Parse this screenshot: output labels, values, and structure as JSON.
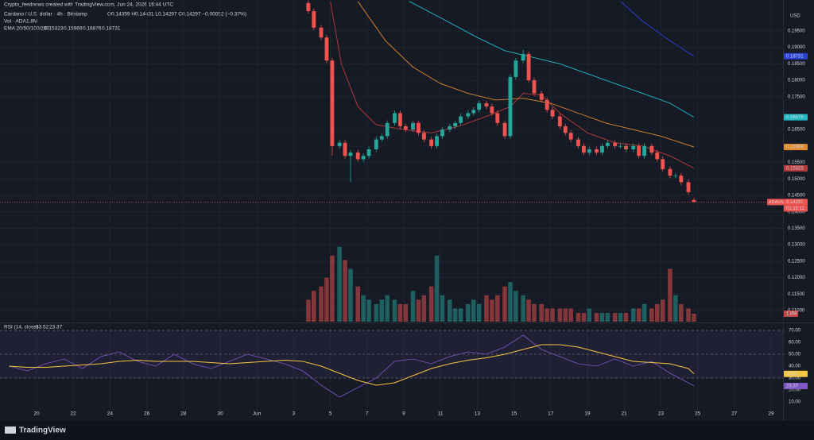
{
  "header": {
    "credit": "Crypto_feednews created with TradingView.com, Jun 24, 2026 16:44 UTC",
    "symbol": "Cardano / U.S. dollar · 4h · Bitstamp",
    "ohlc": "O0.14359  H0.14431  L0.14297  C0.14297  −0.00052 (−0.37%)"
  },
  "chart_data": {
    "type": "candlestick",
    "currency": "USD",
    "symbol": "ADAUSD",
    "countdown": "01:15:11",
    "up_color": "#26a69a",
    "down_color": "#ef5350",
    "grid": true,
    "x": [
      14.8,
      15.1,
      15.5,
      15.8,
      16.1,
      16.5,
      16.8,
      17.1,
      17.5,
      17.8,
      18.1,
      18.5,
      18.8,
      19.1,
      19.5,
      19.8,
      20.1,
      20.5,
      20.8,
      21.1,
      21.5,
      21.8,
      22.1,
      22.5,
      22.8,
      23.1,
      23.5,
      23.8,
      24.1,
      24.5,
      24.8,
      25.1,
      25.5,
      25.8,
      26.1,
      26.5,
      26.8,
      27.1,
      27.5,
      27.8,
      28.1,
      28.5,
      28.8,
      29.1,
      29.5,
      29.8,
      30.1,
      30.5,
      30.8,
      31.1,
      31.5,
      31.8,
      32.1,
      32.5,
      32.8,
      33.1,
      33.5,
      33.8,
      34.1,
      34.5,
      34.8,
      35.1,
      35.5,
      35.8
    ],
    "open": [
      0.2035,
      0.201,
      0.196,
      0.193,
      0.186,
      0.16,
      0.161,
      0.157,
      0.158,
      0.156,
      0.157,
      0.159,
      0.162,
      0.163,
      0.167,
      0.17,
      0.166,
      0.165,
      0.167,
      0.164,
      0.162,
      0.16,
      0.163,
      0.165,
      0.166,
      0.167,
      0.169,
      0.17,
      0.171,
      0.173,
      0.172,
      0.17,
      0.167,
      0.163,
      0.181,
      0.186,
      0.188,
      0.18,
      0.176,
      0.174,
      0.171,
      0.169,
      0.166,
      0.164,
      0.162,
      0.16,
      0.158,
      0.159,
      0.158,
      0.16,
      0.161,
      0.16,
      0.16,
      0.159,
      0.16,
      0.157,
      0.16,
      0.158,
      0.156,
      0.153,
      0.151,
      0.151,
      0.149,
      0.14359
    ],
    "high": [
      0.2043,
      0.2018,
      0.1968,
      0.1938,
      0.1868,
      0.1618,
      0.1618,
      0.1588,
      0.1588,
      0.1578,
      0.1598,
      0.1628,
      0.1638,
      0.1678,
      0.1708,
      0.1708,
      0.1668,
      0.1678,
      0.1678,
      0.1648,
      0.1628,
      0.1638,
      0.1658,
      0.1668,
      0.1678,
      0.1698,
      0.1708,
      0.1718,
      0.1738,
      0.1738,
      0.1728,
      0.1708,
      0.1678,
      0.1818,
      0.1868,
      0.1893,
      0.1888,
      0.1808,
      0.1768,
      0.1748,
      0.1718,
      0.1698,
      0.1668,
      0.1648,
      0.1628,
      0.1608,
      0.1598,
      0.1598,
      0.1608,
      0.1618,
      0.1618,
      0.1608,
      0.1608,
      0.1608,
      0.1608,
      0.1608,
      0.1608,
      0.1588,
      0.1568,
      0.1538,
      0.1518,
      0.1518,
      0.1498,
      0.14431
    ],
    "low": [
      0.2002,
      0.1952,
      0.1922,
      0.1852,
      0.157,
      0.1592,
      0.1562,
      0.149,
      0.1552,
      0.1552,
      0.1562,
      0.1582,
      0.1612,
      0.1622,
      0.1662,
      0.1652,
      0.1642,
      0.1642,
      0.1632,
      0.1612,
      0.1592,
      0.1592,
      0.1622,
      0.1642,
      0.1652,
      0.1662,
      0.1682,
      0.1692,
      0.1702,
      0.1712,
      0.1692,
      0.1662,
      0.1622,
      0.1622,
      0.1802,
      0.1852,
      0.1792,
      0.1752,
      0.1732,
      0.1702,
      0.1682,
      0.1652,
      0.1632,
      0.1612,
      0.1592,
      0.1572,
      0.1572,
      0.1572,
      0.1572,
      0.1592,
      0.1592,
      0.1592,
      0.1582,
      0.1582,
      0.1562,
      0.1562,
      0.1572,
      0.1552,
      0.1522,
      0.1502,
      0.1502,
      0.1482,
      0.1452,
      0.14297
    ],
    "close": [
      0.201,
      0.196,
      0.193,
      0.186,
      0.16,
      0.161,
      0.157,
      0.158,
      0.156,
      0.157,
      0.159,
      0.162,
      0.163,
      0.167,
      0.17,
      0.166,
      0.165,
      0.167,
      0.164,
      0.162,
      0.16,
      0.163,
      0.165,
      0.166,
      0.167,
      0.169,
      0.17,
      0.171,
      0.173,
      0.172,
      0.17,
      0.167,
      0.163,
      0.181,
      0.186,
      0.188,
      0.18,
      0.176,
      0.174,
      0.171,
      0.169,
      0.166,
      0.164,
      0.162,
      0.16,
      0.158,
      0.159,
      0.158,
      0.16,
      0.161,
      0.16,
      0.16,
      0.159,
      0.16,
      0.157,
      0.16,
      0.158,
      0.156,
      0.153,
      0.151,
      0.151,
      0.149,
      0.146,
      0.14297
    ],
    "xlim": [
      -1.99,
      40.65
    ],
    "xticks": [
      {
        "value": 0,
        "label": "20"
      },
      {
        "value": 2,
        "label": "22"
      },
      {
        "value": 4,
        "label": "24"
      },
      {
        "value": 6,
        "label": "26"
      },
      {
        "value": 8,
        "label": "28"
      },
      {
        "value": 10,
        "label": "30"
      },
      {
        "value": 12,
        "label": "Jun"
      },
      {
        "value": 14,
        "label": "3"
      },
      {
        "value": 16,
        "label": "5"
      },
      {
        "value": 18,
        "label": "7"
      },
      {
        "value": 20,
        "label": "9"
      },
      {
        "value": 22,
        "label": "11"
      },
      {
        "value": 24,
        "label": "13"
      },
      {
        "value": 26,
        "label": "15"
      },
      {
        "value": 28,
        "label": "17"
      },
      {
        "value": 30,
        "label": "19"
      },
      {
        "value": 32,
        "label": "21"
      },
      {
        "value": 34,
        "label": "23"
      },
      {
        "value": 36,
        "label": "25"
      },
      {
        "value": 38,
        "label": "27"
      },
      {
        "value": 40,
        "label": "29"
      }
    ],
    "ylim": [
      0.1066,
      0.2044
    ],
    "yticks": [
      {
        "value": 0.195,
        "label": "0.19500"
      },
      {
        "value": 0.19,
        "label": "0.19000"
      },
      {
        "value": 0.185,
        "label": "0.18500"
      },
      {
        "value": 0.18,
        "label": "0.18000"
      },
      {
        "value": 0.175,
        "label": "0.17500"
      },
      {
        "value": 0.165,
        "label": "0.16500"
      },
      {
        "value": 0.16,
        "label": "0.16000"
      },
      {
        "value": 0.155,
        "label": "0.15500"
      },
      {
        "value": 0.15,
        "label": "0.15000"
      },
      {
        "value": 0.145,
        "label": "0.14500"
      },
      {
        "value": 0.14,
        "label": "0.14000"
      },
      {
        "value": 0.135,
        "label": "0.13500"
      },
      {
        "value": 0.13,
        "label": "0.13000"
      },
      {
        "value": 0.125,
        "label": "0.12500"
      },
      {
        "value": 0.12,
        "label": "0.12000"
      },
      {
        "value": 0.115,
        "label": "0.11500"
      },
      {
        "value": 0.11,
        "label": "0.11000"
      }
    ],
    "volume": {
      "name": "Vol · ADA",
      "ylim": [
        0,
        22
      ],
      "last_label": "1.8M",
      "values": [
        5,
        7,
        8,
        10,
        15,
        17,
        14,
        12,
        8,
        6,
        5,
        4,
        5,
        6,
        5,
        4,
        4,
        7,
        5,
        6,
        8,
        15,
        6,
        5,
        3,
        3,
        4,
        5,
        4,
        6,
        5,
        6,
        8,
        9,
        7,
        6,
        5,
        4,
        4,
        3,
        3,
        3,
        3,
        3,
        2,
        2,
        3,
        2,
        2,
        2,
        2,
        2,
        2,
        3,
        3,
        4,
        3,
        4,
        5,
        12,
        6,
        4,
        3,
        1.8
      ]
    },
    "ema": {
      "name": "EMA 20/50/100/200",
      "series": [
        {
          "color": "#b83b3b",
          "x": [
            16.0,
            16.6,
            17.5,
            18.5,
            20.0,
            21.5,
            23.0,
            24.5,
            25.8,
            26.5,
            27.5,
            28.5,
            30.0,
            31.5,
            33.0,
            34.5,
            35.8
          ],
          "values": [
            0.204,
            0.185,
            0.172,
            0.1665,
            0.165,
            0.164,
            0.166,
            0.169,
            0.172,
            0.176,
            0.1755,
            0.17,
            0.164,
            0.161,
            0.16,
            0.157,
            0.15323
          ]
        },
        {
          "color": "#e08a2c",
          "x": [
            17.5,
            19.0,
            20.5,
            22.0,
            23.5,
            25.0,
            26.5,
            28.0,
            29.5,
            31.0,
            32.5,
            34.0,
            35.8
          ],
          "values": [
            0.204,
            0.192,
            0.184,
            0.179,
            0.176,
            0.174,
            0.1745,
            0.173,
            0.17,
            0.167,
            0.165,
            0.163,
            0.15969
          ]
        },
        {
          "color": "#1fbcc7",
          "x": [
            20.3,
            22.0,
            24.0,
            25.5,
            27.0,
            28.5,
            30.0,
            31.5,
            33.0,
            34.5,
            35.8
          ],
          "values": [
            0.204,
            0.199,
            0.193,
            0.189,
            0.187,
            0.185,
            0.182,
            0.179,
            0.176,
            0.173,
            0.16876
          ]
        },
        {
          "color": "#2a3fd6",
          "x": [
            31.8,
            33.0,
            34.5,
            35.8
          ],
          "values": [
            0.204,
            0.198,
            0.192,
            0.18731
          ]
        }
      ]
    },
    "rsi": {
      "name": "RSI (14, close)",
      "ylim": [
        0.67,
        75.33
      ],
      "bands": [
        70,
        30
      ],
      "midline": 50,
      "yticks": [
        {
          "value": 70,
          "label": "70.00"
        },
        {
          "value": 60,
          "label": "60.00"
        },
        {
          "value": 50,
          "label": "50.00"
        },
        {
          "value": 40,
          "label": "40.00"
        },
        {
          "value": 30,
          "label": "30.00"
        },
        {
          "value": 20,
          "label": "20.00"
        },
        {
          "value": 10,
          "label": "10.00"
        }
      ],
      "x": [
        -1.5,
        -0.5,
        0.5,
        1.5,
        2.5,
        3.5,
        4.5,
        5.5,
        6.5,
        7.5,
        8.5,
        9.5,
        10.5,
        11.5,
        12.5,
        13.5,
        14.5,
        15.5,
        16.5,
        17.5,
        18.5,
        19.5,
        20.5,
        21.5,
        22.5,
        23.5,
        24.5,
        25.5,
        26.5,
        27.5,
        28.5,
        29.5,
        30.5,
        31.5,
        32.5,
        33.5,
        34.5,
        35.5,
        35.8
      ],
      "series": [
        {
          "color": "#7e57c2",
          "values": [
            40,
            36,
            42,
            46,
            38,
            48,
            52,
            44,
            40,
            50,
            42,
            38,
            44,
            50,
            46,
            42,
            36,
            24,
            14,
            22,
            30,
            44,
            46,
            42,
            48,
            52,
            50,
            56,
            66,
            54,
            48,
            42,
            40,
            46,
            40,
            44,
            34,
            26,
            23.37
          ]
        },
        {
          "color": "#f5c542",
          "values": [
            40,
            39,
            39,
            40,
            41,
            42,
            44,
            45,
            44,
            44,
            44,
            43,
            42,
            43,
            44,
            45,
            44,
            40,
            34,
            28,
            24,
            26,
            32,
            38,
            42,
            45,
            47,
            50,
            54,
            58,
            58,
            56,
            52,
            48,
            44,
            43,
            42,
            38,
            33.52
          ]
        }
      ]
    }
  },
  "branding": "TradingView"
}
